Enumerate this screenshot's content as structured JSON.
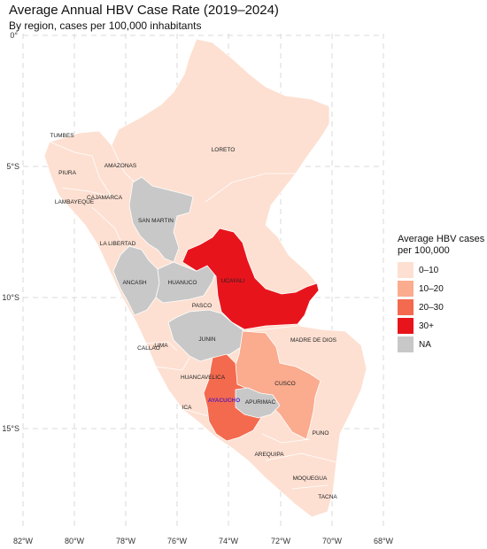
{
  "title": "Average Annual HBV Case Rate (2019–2024)",
  "subtitle": "By region, cases per 100,000 inhabitants",
  "legend": {
    "title_line1": "Average HBV cases",
    "title_line2": "per 100,000",
    "items": [
      {
        "label": "0–10",
        "color": "#fde0d2"
      },
      {
        "label": "10–20",
        "color": "#fbab8e"
      },
      {
        "label": "20–30",
        "color": "#f46a4e"
      },
      {
        "label": "30+",
        "color": "#e8141c"
      },
      {
        "label": "NA",
        "color": "#c8c8c8"
      }
    ]
  },
  "axes": {
    "lon_ticks": [
      "82°W",
      "80°W",
      "78°W",
      "76°W",
      "74°W",
      "72°W",
      "70°W",
      "68°W"
    ],
    "lat_ticks": [
      "0°",
      "5°S",
      "10°S",
      "15°S"
    ]
  },
  "regions": [
    {
      "name": "TUMBES",
      "category": "0–10"
    },
    {
      "name": "PIURA",
      "category": "0–10"
    },
    {
      "name": "AMAZONAS",
      "category": "0–10"
    },
    {
      "name": "LORETO",
      "category": "0–10"
    },
    {
      "name": "CAJAMARCA",
      "category": "0–10"
    },
    {
      "name": "LAMBAYEQUE",
      "category": "0–10"
    },
    {
      "name": "SAN MARTIN",
      "category": "NA"
    },
    {
      "name": "LA LIBERTAD",
      "category": "0–10"
    },
    {
      "name": "UCAYALI",
      "category": "30+"
    },
    {
      "name": "ANCASH",
      "category": "NA"
    },
    {
      "name": "HUANUCO",
      "category": "NA"
    },
    {
      "name": "PASCO",
      "category": "0–10"
    },
    {
      "name": "MADRE DE DIOS",
      "category": "0–10"
    },
    {
      "name": "LIMA",
      "category": "0–10"
    },
    {
      "name": "CALLAO",
      "category": "0–10"
    },
    {
      "name": "JUNIN",
      "category": "NA"
    },
    {
      "name": "HUANCAVELICA",
      "category": "0–10"
    },
    {
      "name": "CUSCO",
      "category": "10–20"
    },
    {
      "name": "AYACUCHO",
      "category": "20–30"
    },
    {
      "name": "APURIMAC",
      "category": "NA"
    },
    {
      "name": "ICA",
      "category": "0–10"
    },
    {
      "name": "PUNO",
      "category": "0–10"
    },
    {
      "name": "AREQUIPA",
      "category": "0–10"
    },
    {
      "name": "MOQUEGUA",
      "category": "0–10"
    },
    {
      "name": "TACNA",
      "category": "0–10"
    }
  ]
}
